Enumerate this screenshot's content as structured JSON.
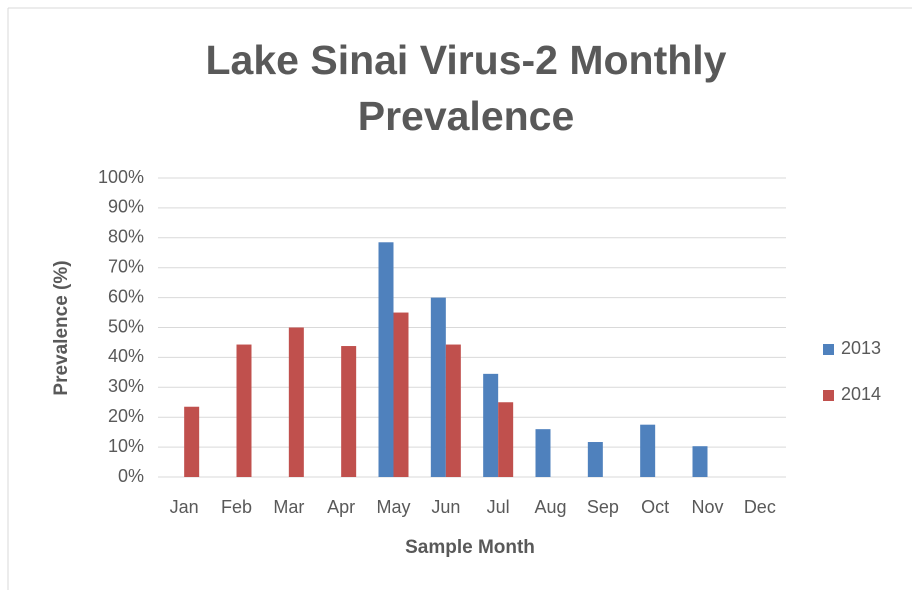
{
  "chart_data": {
    "type": "bar",
    "title": "Lake Sinai Virus-2 Monthly Prevalence",
    "x_label": "Sample Month",
    "y_label": "Prevalence (%)",
    "categories": [
      "Jan",
      "Feb",
      "Mar",
      "Apr",
      "May",
      "Jun",
      "Jul",
      "Aug",
      "Sep",
      "Oct",
      "Nov",
      "Dec"
    ],
    "series": [
      {
        "name": "2013",
        "color": "#4f81bd",
        "values": [
          null,
          null,
          null,
          null,
          78.5,
          60,
          34.5,
          16,
          11.7,
          17.5,
          10.3,
          null
        ]
      },
      {
        "name": "2014",
        "color": "#c0504d",
        "values": [
          23.5,
          44.3,
          50,
          43.8,
          55,
          44.3,
          25,
          null,
          null,
          null,
          null,
          null
        ]
      }
    ],
    "ylim": [
      0,
      100
    ],
    "yticks": [
      {
        "value": 0,
        "label": "0%"
      },
      {
        "value": 10,
        "label": "10%"
      },
      {
        "value": 20,
        "label": "20%"
      },
      {
        "value": 30,
        "label": "30%"
      },
      {
        "value": 40,
        "label": "40%"
      },
      {
        "value": 50,
        "label": "50%"
      },
      {
        "value": 60,
        "label": "60%"
      },
      {
        "value": 70,
        "label": "70%"
      },
      {
        "value": 80,
        "label": "80%"
      },
      {
        "value": 90,
        "label": "90%"
      },
      {
        "value": 100,
        "label": "100%"
      }
    ],
    "grid": true,
    "legend": "right"
  }
}
